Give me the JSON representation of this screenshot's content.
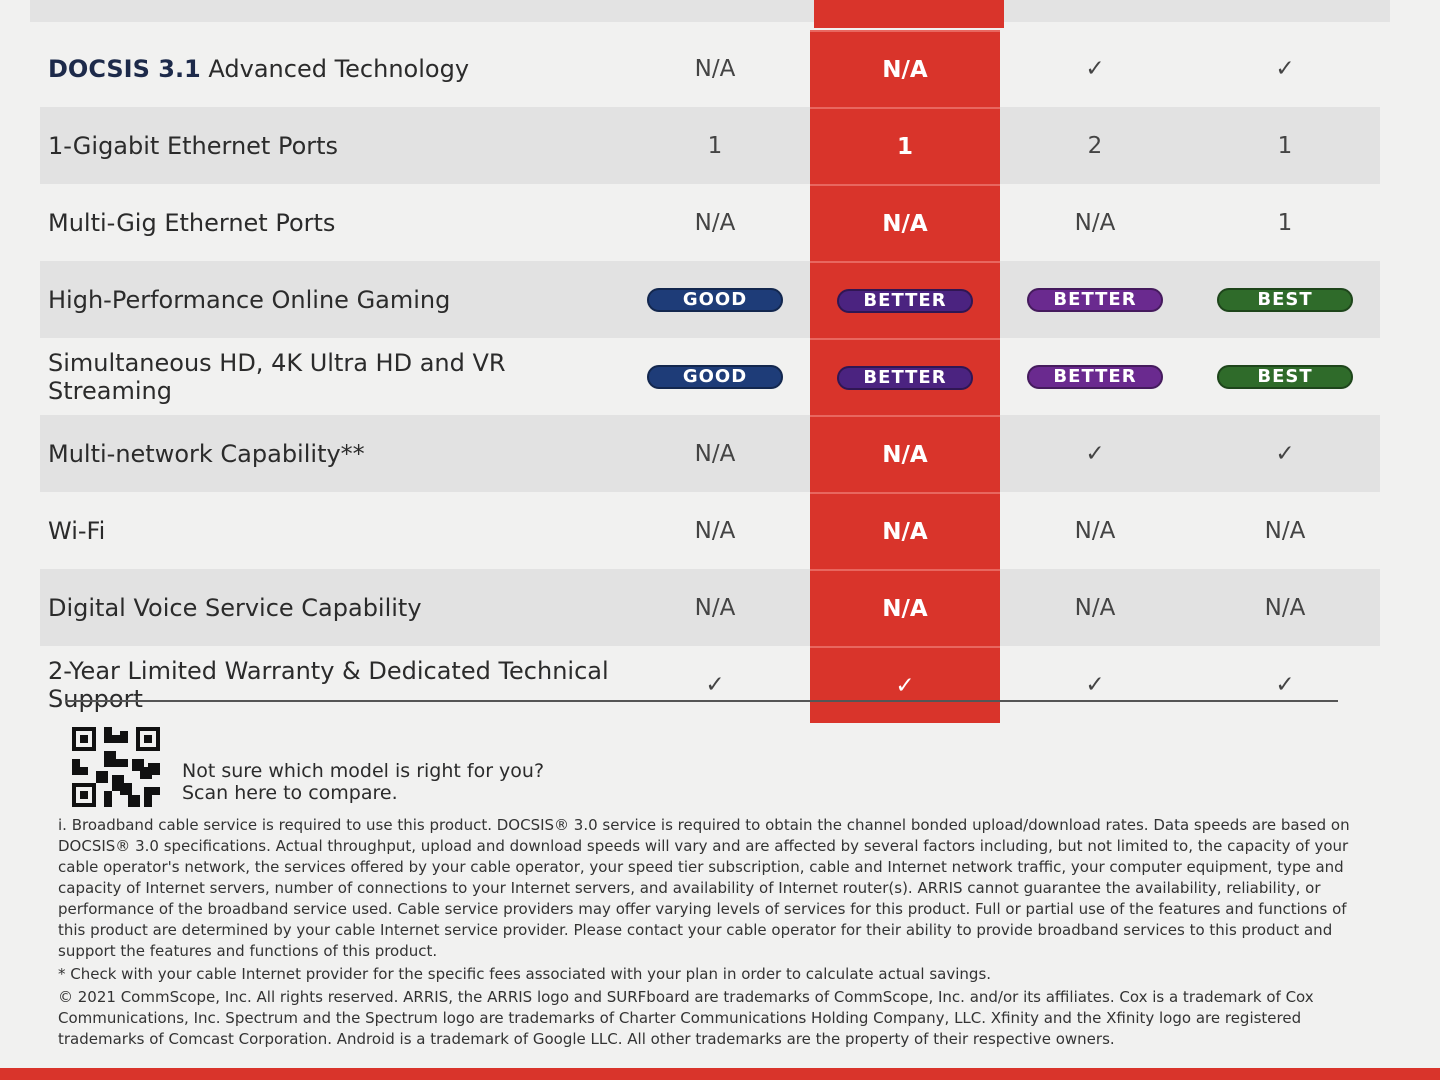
{
  "table": {
    "rows": [
      {
        "label_bold": "DOCSIS 3.1",
        "label": "Advanced Technology",
        "cells": [
          "N/A",
          "N/A",
          "✓",
          "✓"
        ]
      },
      {
        "label": "1-Gigabit Ethernet Ports",
        "cells": [
          "1",
          "1",
          "2",
          "1"
        ]
      },
      {
        "label": "Multi-Gig Ethernet Ports",
        "cells": [
          "N/A",
          "N/A",
          "N/A",
          "1"
        ]
      },
      {
        "label": "High-Performance Online Gaming",
        "cells": [
          {
            "badge": "GOOD",
            "color": "#1e3c78"
          },
          {
            "badge": "BETTER",
            "color": "#4b2380"
          },
          {
            "badge": "BETTER",
            "color": "#6a2a8f"
          },
          {
            "badge": "BEST",
            "color": "#2f6b2a"
          }
        ]
      },
      {
        "label": "Simultaneous HD, 4K Ultra HD and VR Streaming",
        "cells": [
          {
            "badge": "GOOD",
            "color": "#1e3c78"
          },
          {
            "badge": "BETTER",
            "color": "#4b2380"
          },
          {
            "badge": "BETTER",
            "color": "#6a2a8f"
          },
          {
            "badge": "BEST",
            "color": "#2f6b2a"
          }
        ]
      },
      {
        "label": "Multi-network Capability**",
        "cells": [
          "N/A",
          "N/A",
          "✓",
          "✓"
        ]
      },
      {
        "label": "Wi-Fi",
        "cells": [
          "N/A",
          "N/A",
          "N/A",
          "N/A"
        ]
      },
      {
        "label": "Digital Voice Service Capability",
        "cells": [
          "N/A",
          "N/A",
          "N/A",
          "N/A"
        ]
      },
      {
        "label": "2-Year Limited Warranty & Dedicated Technical Support",
        "cells": [
          "✓",
          "✓",
          "✓",
          "✓"
        ]
      }
    ]
  },
  "qr_caption": [
    "Not sure which model is right for you?",
    "Scan here to compare."
  ],
  "footnotes": [
    "i. Broadband cable service is required to use this product. DOCSIS® 3.0 service is required to obtain the channel bonded upload/download rates. Data speeds are based on DOCSIS® 3.0 specifications. Actual throughput, upload and download speeds will vary and are affected by several factors including, but not limited to, the capacity of your cable operator's network, the services offered by your cable operator, your speed tier subscription, cable and Internet network traffic, your computer equipment, type and capacity of Internet servers, number of connections to your Internet servers, and availability of Internet router(s). ARRIS cannot guarantee the availability, reliability, or performance of the broadband service used. Cable service providers may offer varying levels of services for this product. Full or partial use of the features and functions of this product are determined by your cable Internet service provider. Please contact your cable operator for their ability to provide broadband services to this product and support the features and functions of this product.",
    "* Check with your cable Internet provider for the specific fees associated with your plan in order to calculate actual savings.",
    "© 2021 CommScope, Inc. All rights reserved. ARRIS, the ARRIS logo and SURFboard are trademarks of CommScope, Inc. and/or its affiliates. Cox is a trademark of Cox Communications, Inc. Spectrum and the Spectrum logo are trademarks of Charter Communications Holding Company, LLC. Xfinity and the Xfinity logo are registered trademarks of Comcast Corporation. Android is a trademark of Google LLC. All other trademarks are the property of their respective owners."
  ]
}
